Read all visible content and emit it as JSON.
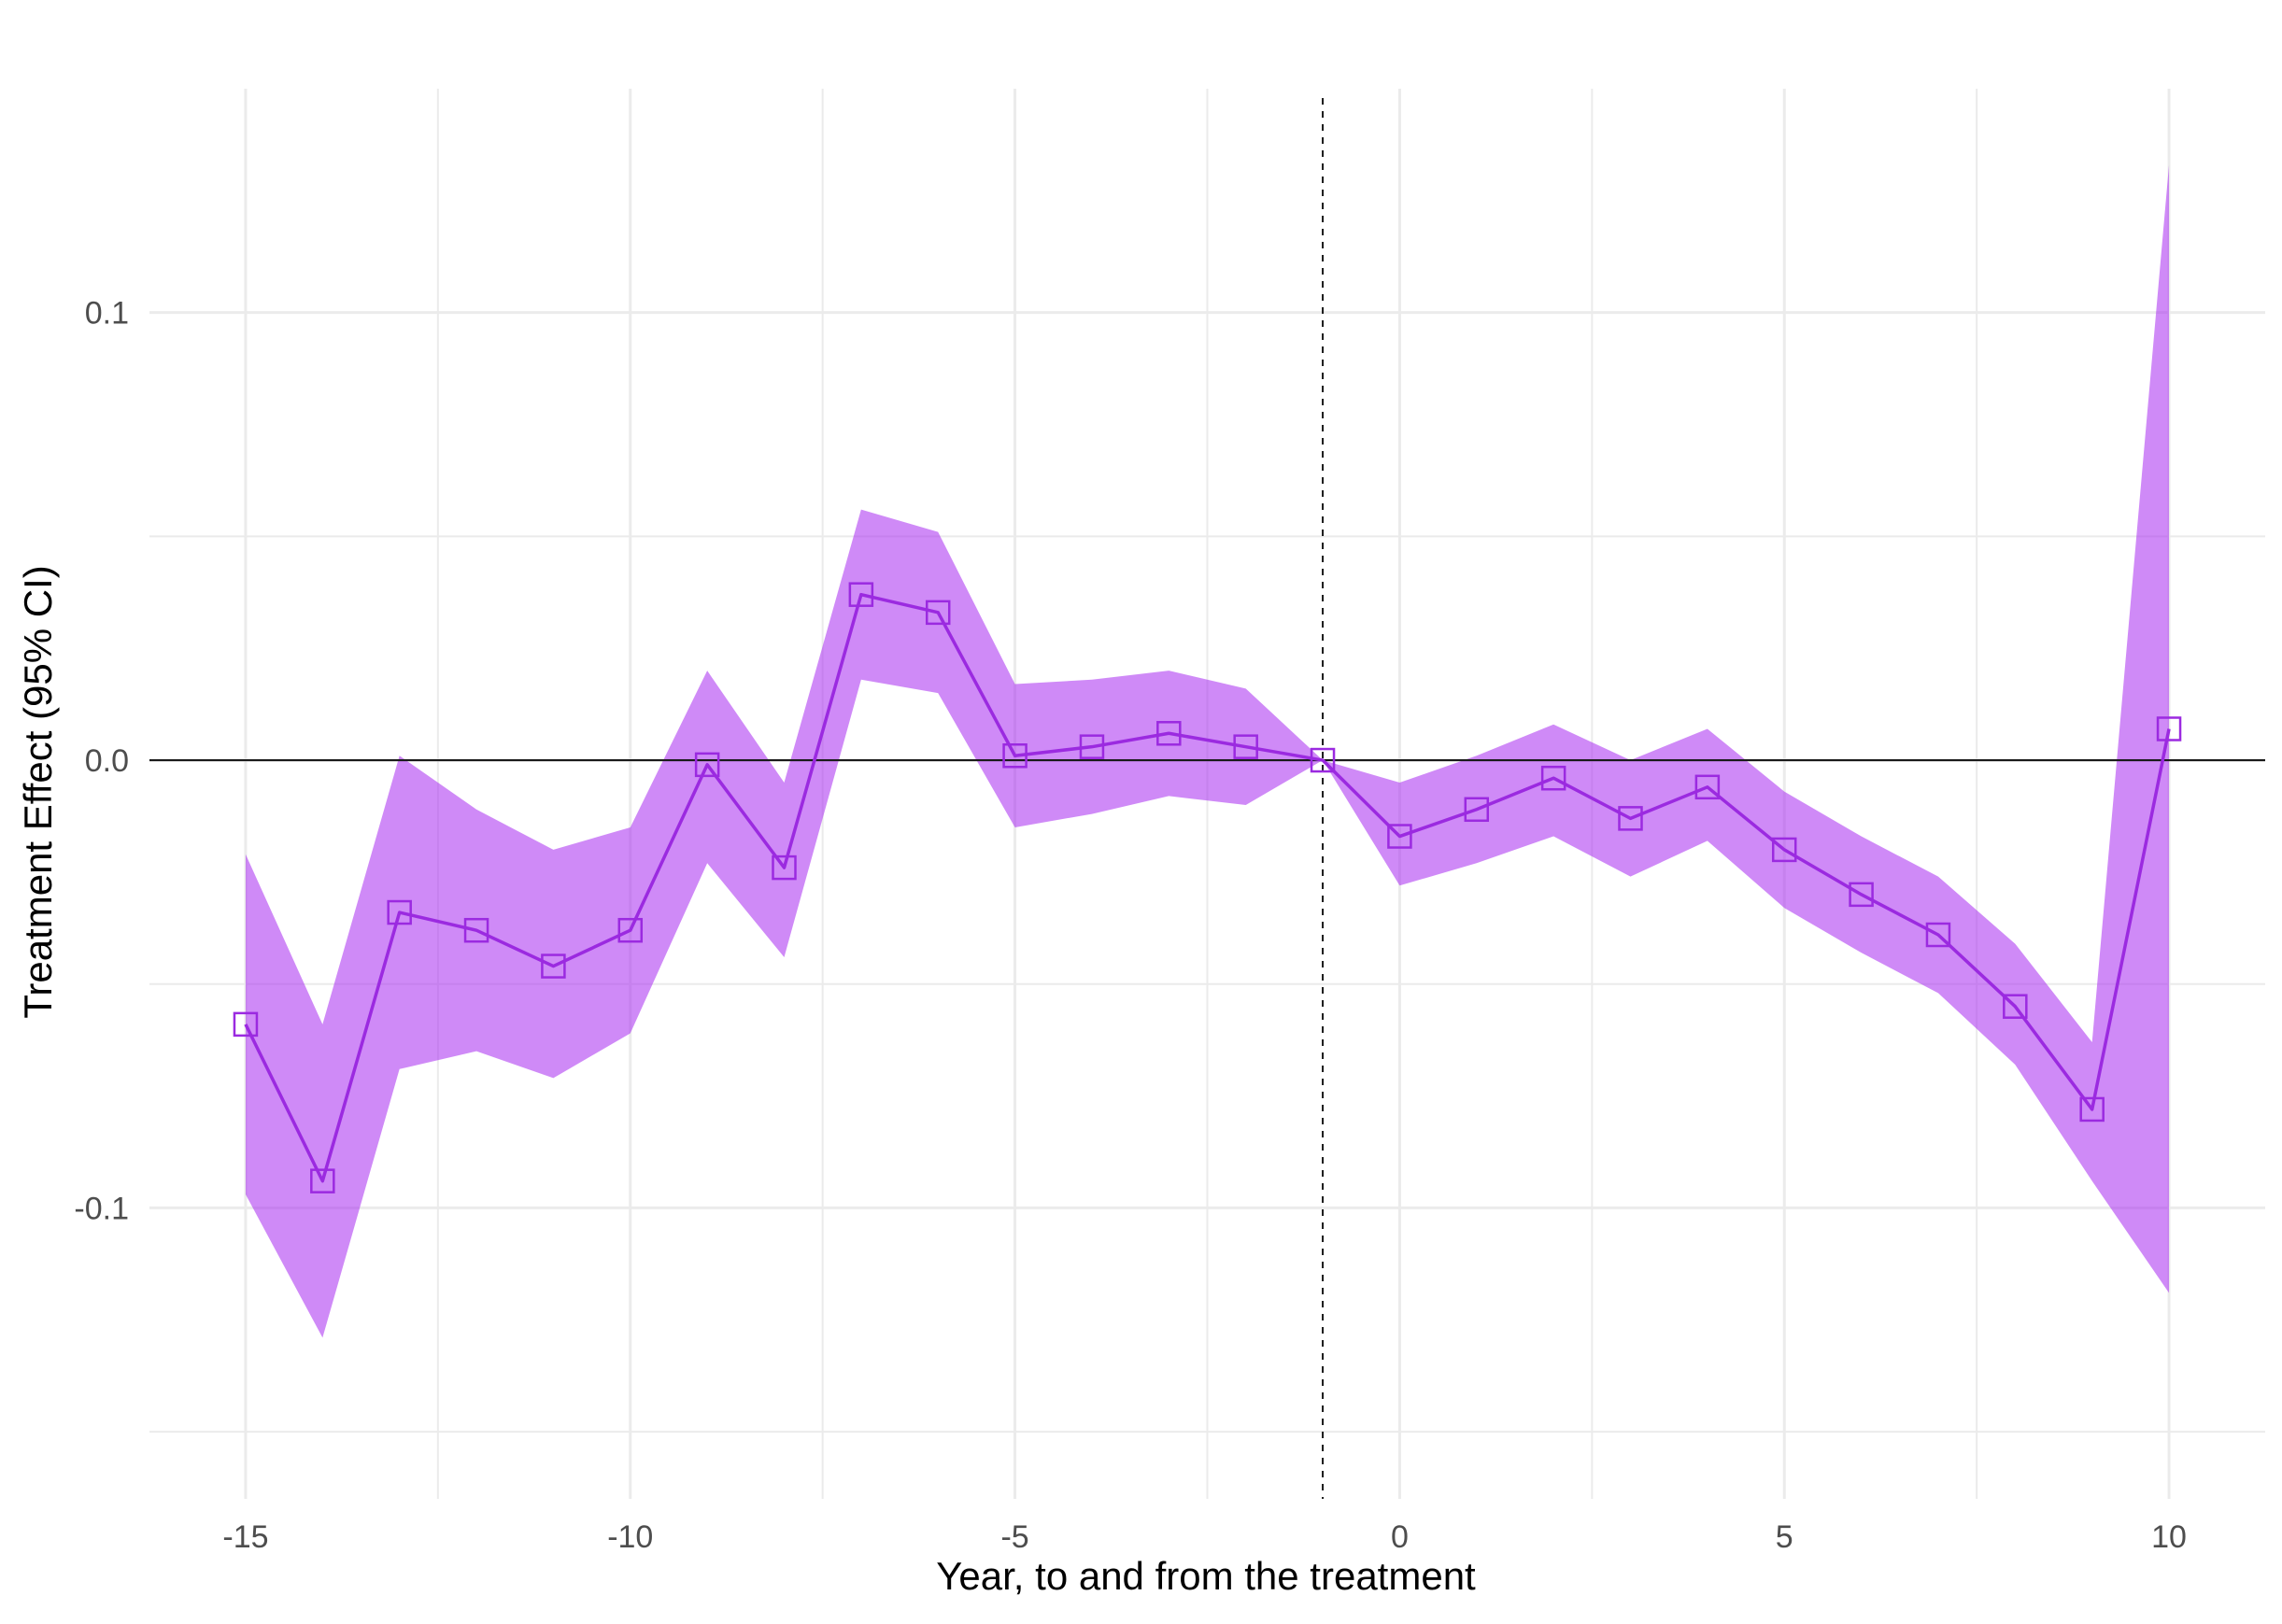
{
  "chart_data": {
    "type": "line",
    "title": "",
    "xlabel": "Year, to and from the treatment",
    "ylabel": "Treatment Effect (95% CI)",
    "xlim": [
      -16.25,
      11.25
    ],
    "ylim": [
      -0.165,
      0.15
    ],
    "x_ticks": [
      -15,
      -10,
      -5,
      0,
      5,
      10
    ],
    "x_tick_labels": [
      "-15",
      "-10",
      "-5",
      "0",
      "5",
      "10"
    ],
    "y_ticks": [
      -0.1,
      0.0,
      0.1
    ],
    "y_tick_labels": [
      "-0.1",
      "0.0",
      "0.1"
    ],
    "grid": true,
    "reference_lines": {
      "horizontal_y": 0,
      "vertical_dashed_x": -1
    },
    "series": [
      {
        "x": [
          -15,
          -14,
          -13,
          -12,
          -11,
          -10,
          -9,
          -8,
          -7,
          -6,
          -5,
          -4,
          -3,
          -2,
          -1,
          0,
          1,
          2,
          3,
          4,
          5,
          6,
          7,
          8,
          9,
          10
        ],
        "values": [
          -0.059,
          -0.094,
          -0.034,
          -0.038,
          -0.046,
          -0.038,
          -0.001,
          -0.024,
          0.037,
          0.033,
          0.001,
          0.003,
          0.006,
          0.003,
          0.0,
          -0.017,
          -0.011,
          -0.004,
          -0.013,
          -0.006,
          -0.02,
          -0.03,
          -0.039,
          -0.055,
          -0.078,
          0.007
        ],
        "ci_lower": [
          -0.097,
          -0.129,
          -0.069,
          -0.065,
          -0.071,
          -0.061,
          -0.023,
          -0.044,
          0.018,
          0.015,
          -0.015,
          -0.012,
          -0.008,
          -0.01,
          0.0,
          -0.028,
          -0.023,
          -0.017,
          -0.026,
          -0.018,
          -0.033,
          -0.043,
          -0.052,
          -0.068,
          -0.094,
          -0.119
        ],
        "ci_upper": [
          -0.021,
          -0.059,
          0.001,
          -0.011,
          -0.02,
          -0.015,
          0.02,
          -0.005,
          0.056,
          0.051,
          0.017,
          0.018,
          0.02,
          0.016,
          0.0,
          -0.005,
          0.001,
          0.008,
          0.0,
          0.007,
          -0.007,
          -0.017,
          -0.026,
          -0.041,
          -0.063,
          0.133
        ]
      }
    ],
    "colors": {
      "band": "#a72af0",
      "line": "#9b2ae0",
      "marker": "#9b2ae0",
      "grid": "#ebebeb",
      "zero_line": "#1a1a1a",
      "vline": "#1a1a1a"
    }
  }
}
